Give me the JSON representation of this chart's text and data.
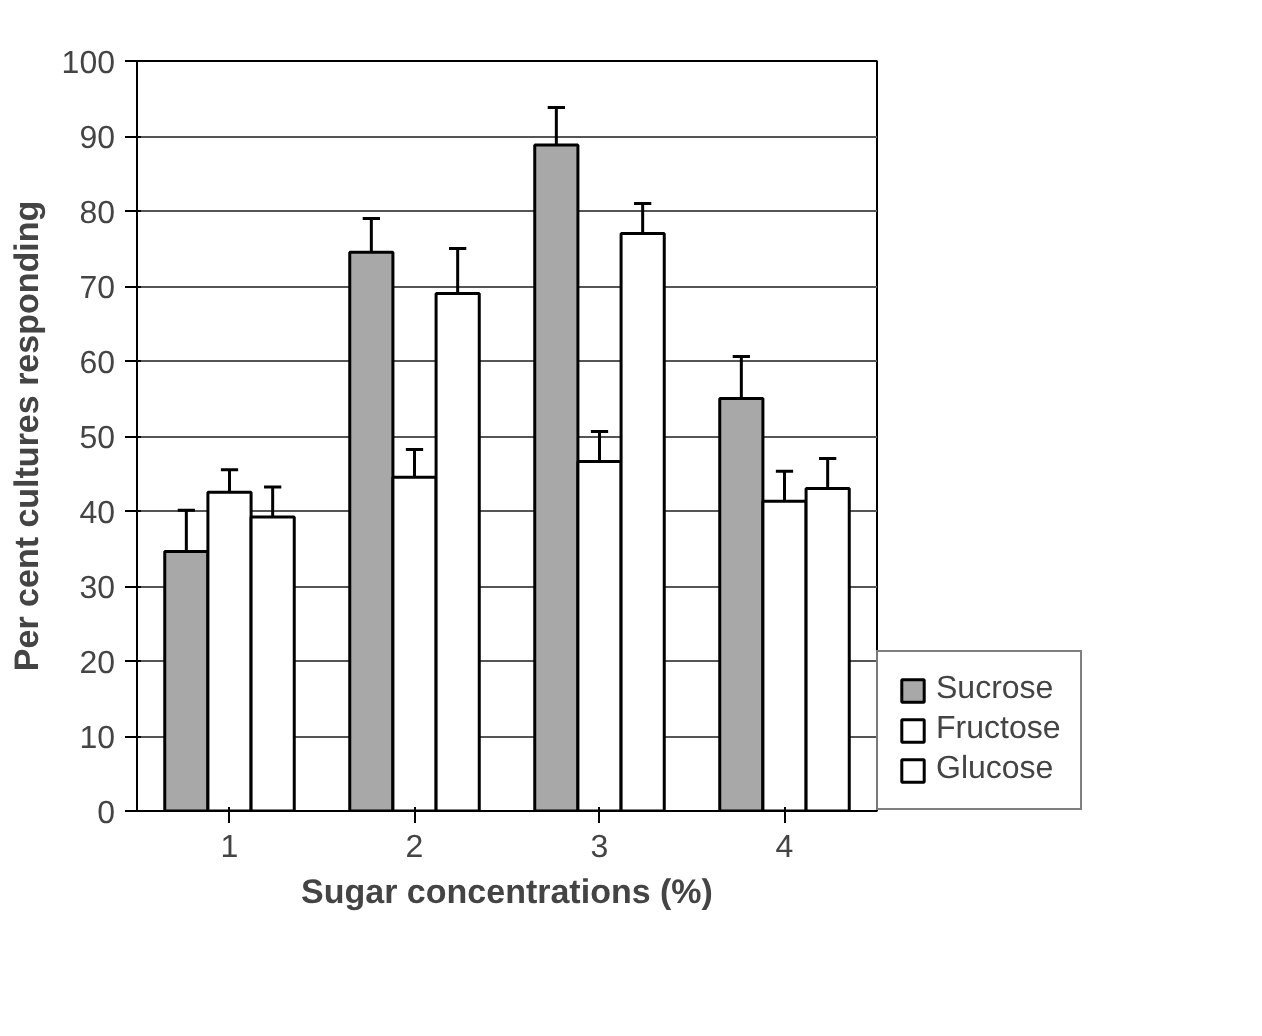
{
  "chart_data": {
    "type": "bar",
    "xlabel": "Sugar concentrations (%)",
    "ylabel": "Per cent cultures responding",
    "categories": [
      "1",
      "2",
      "3",
      "4"
    ],
    "series": [
      {
        "name": "Sucrose",
        "color": "#a8a8a8",
        "values": [
          34.6,
          74.5,
          88.8,
          55
        ],
        "errors": [
          5.5,
          4.5,
          5,
          5.6
        ]
      },
      {
        "name": "Fructose",
        "color": "#ffffff",
        "values": [
          42.5,
          44.5,
          46.6,
          41.3
        ],
        "errors": [
          3,
          3.7,
          4,
          4
        ]
      },
      {
        "name": "Glucose",
        "color": "#ffffff",
        "values": [
          39.2,
          69,
          77,
          43
        ],
        "errors": [
          4,
          6,
          4,
          4
        ]
      }
    ],
    "ylim": [
      0,
      100
    ],
    "yticks": [
      0,
      10,
      20,
      30,
      40,
      50,
      60,
      70,
      80,
      90,
      100
    ],
    "grid": "y",
    "legend": "right"
  }
}
